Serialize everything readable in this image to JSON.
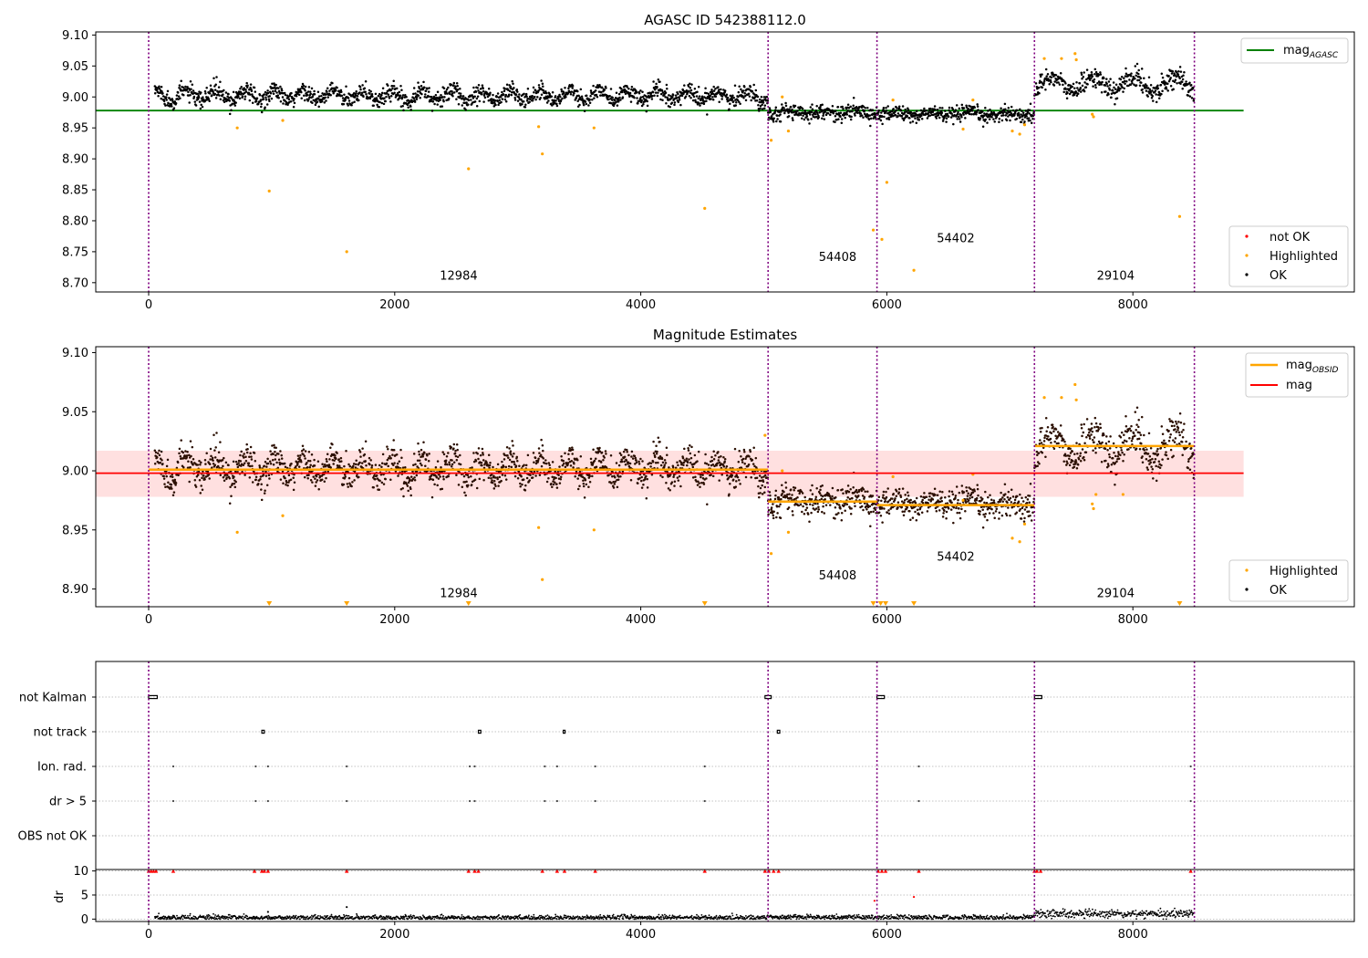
{
  "colors": {
    "ok": "#000000",
    "highlighted": "#ffa500",
    "not_ok": "#ff0000",
    "mag_agasc_line": "#008000",
    "mag_line": "#ff0000",
    "mag_obsid_line": "#ffa500",
    "mag_band": "#ffcccc",
    "obsid_separator": "#800080",
    "grid": "#b0b0b0",
    "dr_over_marker": "#ff0000"
  },
  "chart_data": [
    {
      "type": "scatter",
      "title": "AGASC ID 542388112.0",
      "xlim": [
        -430,
        9800
      ],
      "ylim": [
        8.685,
        9.105
      ],
      "xticks": [
        0,
        2000,
        4000,
        6000,
        8000
      ],
      "xtick_labels": [
        "0",
        "2000",
        "4000",
        "6000",
        "8000"
      ],
      "yticks": [
        8.7,
        8.75,
        8.8,
        8.85,
        8.9,
        8.95,
        9.0,
        9.05,
        9.1
      ],
      "ytick_labels": [
        "8.70",
        "8.75",
        "8.80",
        "8.85",
        "8.90",
        "8.95",
        "9.00",
        "9.05",
        "9.10"
      ],
      "obsid_boundaries": [
        0,
        5035,
        5920,
        7200,
        8500
      ],
      "obsid_labels": [
        {
          "text": "12984",
          "x": 2520,
          "y": 8.705
        },
        {
          "text": "54408",
          "x": 5600,
          "y": 8.735
        },
        {
          "text": "54402",
          "x": 6560,
          "y": 8.765
        },
        {
          "text": "29104",
          "x": 7860,
          "y": 8.705
        }
      ],
      "segments": [
        {
          "x_start": 50,
          "x_end": 5035,
          "mean": 9.002,
          "amplitude": 0.009,
          "noise": 0.007
        },
        {
          "x_start": 5035,
          "x_end": 5920,
          "mean": 8.975,
          "amplitude": 0.003,
          "noise": 0.006
        },
        {
          "x_start": 5920,
          "x_end": 7200,
          "mean": 8.972,
          "amplitude": 0.003,
          "noise": 0.006
        },
        {
          "x_start": 7200,
          "x_end": 8500,
          "mean": 9.021,
          "amplitude": 0.012,
          "noise": 0.008
        }
      ],
      "highlighted_points": [
        [
          720,
          8.95
        ],
        [
          1090,
          8.962
        ],
        [
          980,
          8.848
        ],
        [
          1610,
          8.75
        ],
        [
          2600,
          8.884
        ],
        [
          3170,
          8.952
        ],
        [
          3200,
          8.908
        ],
        [
          3620,
          8.95
        ],
        [
          4520,
          8.82
        ],
        [
          5060,
          8.93
        ],
        [
          5150,
          9.0
        ],
        [
          5200,
          8.945
        ],
        [
          5890,
          8.785
        ],
        [
          5960,
          8.77
        ],
        [
          6000,
          8.862
        ],
        [
          6050,
          8.995
        ],
        [
          6220,
          8.72
        ],
        [
          6620,
          8.948
        ],
        [
          6700,
          8.995
        ],
        [
          7020,
          8.945
        ],
        [
          7080,
          8.94
        ],
        [
          7120,
          8.955
        ],
        [
          7280,
          9.062
        ],
        [
          7420,
          9.062
        ],
        [
          7530,
          9.07
        ],
        [
          7540,
          9.06
        ],
        [
          7670,
          8.972
        ],
        [
          7680,
          8.968
        ],
        [
          8380,
          8.807
        ]
      ],
      "series": [
        {
          "name": "mag_{AGASC}",
          "kind": "line",
          "y": 8.978,
          "x_range": [
            -430,
            8900
          ]
        }
      ],
      "legend_upper": {
        "placement": "upper right",
        "entries": [
          {
            "label_main": "mag",
            "label_sub": "AGASC"
          }
        ]
      },
      "legend_lower": {
        "placement": "lower right",
        "entries": [
          "not OK",
          "Highlighted",
          "OK"
        ]
      }
    },
    {
      "type": "scatter",
      "title": "Magnitude Estimates",
      "xlim": [
        -430,
        9800
      ],
      "ylim": [
        8.885,
        9.105
      ],
      "xticks": [
        0,
        2000,
        4000,
        6000,
        8000
      ],
      "xtick_labels": [
        "0",
        "2000",
        "4000",
        "6000",
        "8000"
      ],
      "yticks": [
        8.9,
        8.95,
        9.0,
        9.05,
        9.1
      ],
      "ytick_labels": [
        "8.90",
        "8.95",
        "9.00",
        "9.05",
        "9.10"
      ],
      "obsid_boundaries": [
        0,
        5035,
        5920,
        7200,
        8500
      ],
      "obsid_labels": [
        {
          "text": "12984",
          "x": 2520,
          "y": 8.893
        },
        {
          "text": "54408",
          "x": 5600,
          "y": 8.908
        },
        {
          "text": "54402",
          "x": 6560,
          "y": 8.924
        },
        {
          "text": "29104",
          "x": 7860,
          "y": 8.893
        }
      ],
      "mag": 8.998,
      "mag_band": [
        8.978,
        9.017
      ],
      "mag_obsid": [
        {
          "x_start": 0,
          "x_end": 5035,
          "value": 9.001
        },
        {
          "x_start": 5035,
          "x_end": 5920,
          "value": 8.974
        },
        {
          "x_start": 5920,
          "x_end": 7200,
          "value": 8.971
        },
        {
          "x_start": 7200,
          "x_end": 8500,
          "value": 9.021
        }
      ],
      "highlighted_points": [
        [
          720,
          8.948
        ],
        [
          1090,
          8.962
        ],
        [
          3170,
          8.952
        ],
        [
          3200,
          8.908
        ],
        [
          3620,
          8.95
        ],
        [
          5010,
          9.03
        ],
        [
          5060,
          8.93
        ],
        [
          5150,
          9.0
        ],
        [
          5200,
          8.948
        ],
        [
          6050,
          8.995
        ],
        [
          6620,
          8.975
        ],
        [
          6700,
          8.997
        ],
        [
          7020,
          8.943
        ],
        [
          7080,
          8.94
        ],
        [
          7120,
          8.955
        ],
        [
          7280,
          9.062
        ],
        [
          7420,
          9.062
        ],
        [
          7530,
          9.073
        ],
        [
          7540,
          9.06
        ],
        [
          7670,
          8.972
        ],
        [
          7680,
          8.968
        ],
        [
          7700,
          8.98
        ],
        [
          7920,
          8.98
        ]
      ],
      "below_range_markers_x": [
        980,
        1610,
        2600,
        4520,
        5890,
        5950,
        5990,
        6220,
        8380
      ],
      "series": [
        {
          "name": "mag_{OBSID}",
          "kind": "step"
        },
        {
          "name": "mag",
          "kind": "line"
        }
      ],
      "legend_upper": {
        "placement": "upper right",
        "entries": [
          {
            "label_main": "mag",
            "label_sub": "OBSID"
          },
          {
            "label_main": "mag",
            "label_sub": ""
          }
        ]
      },
      "legend_lower": {
        "placement": "lower right",
        "entries": [
          "Highlighted",
          "OK"
        ]
      }
    },
    {
      "type": "scatter",
      "title": "",
      "xlim": [
        -430,
        9800
      ],
      "flag_labels": [
        "not Kalman",
        "not track",
        "Ion. rad.",
        "dr > 5",
        "OBS not OK"
      ],
      "flags": {
        "not Kalman": [
          [
            0,
            70
          ],
          [
            5010,
            5060
          ],
          [
            5920,
            5980
          ],
          [
            7200,
            7260
          ]
        ],
        "not track": [
          [
            920,
            940
          ],
          [
            2680,
            2700
          ],
          [
            3370,
            3380
          ],
          [
            5110,
            5130
          ]
        ],
        "Ion. rad.": [
          [
            200
          ],
          [
            870
          ],
          [
            970
          ],
          [
            1610
          ],
          [
            2610
          ],
          [
            2650
          ],
          [
            3220
          ],
          [
            3320
          ],
          [
            3630
          ],
          [
            4520
          ],
          [
            6260
          ],
          [
            8470
          ]
        ],
        "dr > 5": [
          [
            200
          ],
          [
            870
          ],
          [
            970
          ],
          [
            1610
          ],
          [
            2610
          ],
          [
            2650
          ],
          [
            3220
          ],
          [
            3320
          ],
          [
            3630
          ],
          [
            4520
          ],
          [
            6260
          ],
          [
            8470
          ]
        ],
        "OBS not OK": []
      },
      "dr_ylim": [
        -0.5,
        10.3
      ],
      "dr_yticks": [
        0,
        5,
        10
      ],
      "dr_ytick_labels": [
        "0",
        "5",
        "10"
      ],
      "dr_ylabel": "dr",
      "dr_over_range_x": [
        0,
        20,
        40,
        60,
        200,
        860,
        920,
        940,
        970,
        1610,
        2600,
        2650,
        2680,
        3200,
        3320,
        3380,
        3630,
        4520,
        5010,
        5040,
        5080,
        5120,
        5930,
        5960,
        5990,
        6260,
        7200,
        7220,
        7250,
        8470
      ],
      "dr_extra_points": [
        [
          970,
          1.5
        ],
        [
          1610,
          2.5
        ],
        [
          5900,
          3.8
        ],
        [
          6220,
          4.6
        ]
      ],
      "dr_segments": [
        {
          "x_start": 50,
          "x_end": 5035,
          "mean": 0.3
        },
        {
          "x_start": 5035,
          "x_end": 5920,
          "mean": 0.4
        },
        {
          "x_start": 5920,
          "x_end": 7200,
          "mean": 0.35
        },
        {
          "x_start": 7200,
          "x_end": 8500,
          "mean": 1.1
        }
      ],
      "xticks": [
        0,
        2000,
        4000,
        6000,
        8000
      ],
      "xtick_labels": [
        "0",
        "2000",
        "4000",
        "6000",
        "8000"
      ]
    }
  ]
}
